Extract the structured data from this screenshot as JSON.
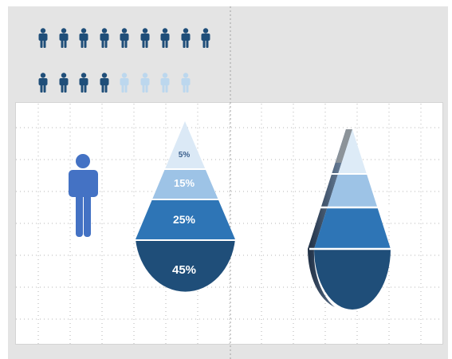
{
  "colors": {
    "background": "#e4e4e4",
    "panel": "#ffffff",
    "icon_dark": "#1f4e79",
    "icon_light": "#bcd7ee",
    "person": "#4472c4",
    "tier_1": "#dbe9f6",
    "tier_2": "#9dc3e6",
    "tier_3": "#2e75b6",
    "tier_4": "#1f4e79"
  },
  "icon_rows": [
    {
      "highlighted": 9,
      "total": 9
    },
    {
      "highlighted": 4,
      "total": 8
    }
  ],
  "person": {
    "icon": "person-icon"
  },
  "drop_labels": {
    "tier_1": "5%",
    "tier_2": "15%",
    "tier_3": "25%",
    "tier_4": "45%"
  }
}
